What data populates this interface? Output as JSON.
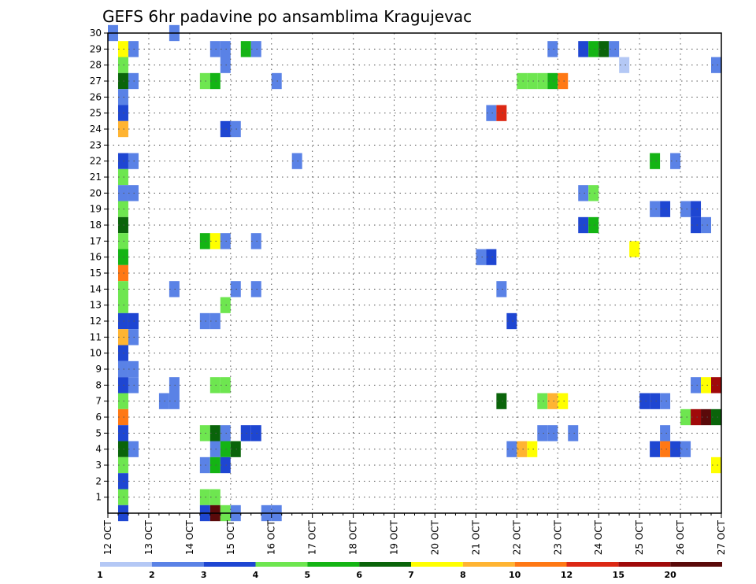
{
  "chart_data": {
    "type": "heatmap",
    "title": "GEFS 6hr padavine po ansamblima Kragujevac",
    "xlabel": "",
    "ylabel": "",
    "x_ticks": [
      "12 OCT",
      "13 OCT",
      "14 OCT",
      "15 OCT",
      "16 OCT",
      "17 OCT",
      "18 OCT",
      "19 OCT",
      "20 OCT",
      "21 OCT",
      "22 OCT",
      "23 OCT",
      "24 OCT",
      "25 OCT",
      "26 OCT",
      "27 OCT"
    ],
    "xlim_days": [
      12,
      27
    ],
    "y_ticks": [
      1,
      2,
      3,
      4,
      5,
      6,
      7,
      8,
      9,
      10,
      11,
      12,
      13,
      14,
      15,
      16,
      17,
      18,
      19,
      20,
      21,
      22,
      23,
      24,
      25,
      26,
      27,
      28,
      29,
      30
    ],
    "ylim": [
      0,
      30
    ],
    "grid": true,
    "colorbar": {
      "labels": [
        "1",
        "2",
        "3",
        "4",
        "5",
        "6",
        "7",
        "8",
        "10",
        "12",
        "15",
        "20"
      ],
      "colors": [
        "#b4c8f5",
        "#5a82e6",
        "#1e46d2",
        "#6ee650",
        "#14b414",
        "#0a640a",
        "#ffff00",
        "#ffb432",
        "#ff7814",
        "#dc2814",
        "#a00a0a",
        "#5a0a0a"
      ]
    },
    "cells": [
      [
        12,
        30,
        1
      ],
      [
        12.25,
        29,
        6
      ],
      [
        12.5,
        29,
        1
      ],
      [
        12.25,
        28,
        3
      ],
      [
        12.25,
        27,
        5
      ],
      [
        12.5,
        27,
        1
      ],
      [
        12.25,
        26,
        1
      ],
      [
        12.25,
        25,
        2
      ],
      [
        12.25,
        24,
        7
      ],
      [
        12.25,
        22,
        2
      ],
      [
        12.5,
        22,
        1
      ],
      [
        12.25,
        21,
        3
      ],
      [
        12.25,
        20,
        1
      ],
      [
        12.5,
        20,
        1
      ],
      [
        12.25,
        19,
        3
      ],
      [
        12.25,
        18,
        5
      ],
      [
        12.25,
        17,
        3
      ],
      [
        12.25,
        16,
        4
      ],
      [
        12.25,
        15,
        8
      ],
      [
        12.25,
        14,
        3
      ],
      [
        12.25,
        13,
        3
      ],
      [
        12.25,
        12,
        2
      ],
      [
        12.5,
        12,
        2
      ],
      [
        12.25,
        11,
        7
      ],
      [
        12.5,
        11,
        1
      ],
      [
        12.25,
        10,
        2
      ],
      [
        12.25,
        9,
        1
      ],
      [
        12.5,
        9,
        1
      ],
      [
        12.25,
        8,
        2
      ],
      [
        12.5,
        8,
        1
      ],
      [
        12.25,
        7,
        3
      ],
      [
        12.25,
        6,
        8
      ],
      [
        12.25,
        5,
        2
      ],
      [
        12.25,
        4,
        5
      ],
      [
        12.5,
        4,
        1
      ],
      [
        12.25,
        3,
        3
      ],
      [
        12.25,
        2,
        2
      ],
      [
        12.25,
        1,
        3
      ],
      [
        12.25,
        0,
        2
      ],
      [
        13.5,
        30,
        1
      ],
      [
        14.5,
        29,
        1
      ],
      [
        14.75,
        29,
        1
      ],
      [
        15.25,
        29,
        4
      ],
      [
        15.5,
        29,
        1
      ],
      [
        14.75,
        28,
        1
      ],
      [
        14.25,
        27,
        3
      ],
      [
        14.5,
        27,
        4
      ],
      [
        16,
        27,
        1
      ],
      [
        14.75,
        24,
        2
      ],
      [
        15,
        24,
        1
      ],
      [
        16.5,
        22,
        1
      ],
      [
        14.25,
        17,
        4
      ],
      [
        14.5,
        17,
        6
      ],
      [
        14.75,
        17,
        1
      ],
      [
        15.5,
        17,
        1
      ],
      [
        13.5,
        14,
        1
      ],
      [
        15,
        14,
        1
      ],
      [
        15.5,
        14,
        1
      ],
      [
        14.75,
        13,
        3
      ],
      [
        14.25,
        12,
        1
      ],
      [
        14.5,
        12,
        1
      ],
      [
        13.5,
        8,
        1
      ],
      [
        14.5,
        8,
        3
      ],
      [
        14.75,
        8,
        3
      ],
      [
        13.25,
        7,
        1
      ],
      [
        13.5,
        7,
        1
      ],
      [
        14.25,
        5,
        3
      ],
      [
        14.5,
        5,
        5
      ],
      [
        14.75,
        5,
        1
      ],
      [
        15.25,
        5,
        2
      ],
      [
        15.5,
        5,
        2
      ],
      [
        14.5,
        4,
        1
      ],
      [
        14.75,
        4,
        4
      ],
      [
        15,
        4,
        5
      ],
      [
        14.25,
        3,
        1
      ],
      [
        14.5,
        3,
        4
      ],
      [
        14.75,
        3,
        2
      ],
      [
        14.25,
        1,
        3
      ],
      [
        14.5,
        1,
        3
      ],
      [
        14.25,
        0,
        2
      ],
      [
        14.5,
        0,
        11
      ],
      [
        14.75,
        0,
        3
      ],
      [
        15,
        0,
        1
      ],
      [
        15.75,
        0,
        1
      ],
      [
        16,
        0,
        1
      ],
      [
        21.25,
        25,
        1
      ],
      [
        21.5,
        25,
        9
      ],
      [
        21,
        16,
        1
      ],
      [
        21.25,
        16,
        2
      ],
      [
        21.5,
        14,
        1
      ],
      [
        21.75,
        12,
        2
      ],
      [
        21.5,
        7,
        5
      ],
      [
        21.75,
        4,
        1
      ],
      [
        22,
        4,
        7
      ],
      [
        22.25,
        4,
        6
      ],
      [
        22.75,
        29,
        1
      ],
      [
        23.5,
        29,
        2
      ],
      [
        23.75,
        29,
        4
      ],
      [
        24,
        29,
        5
      ],
      [
        24.25,
        29,
        1
      ],
      [
        24.5,
        28,
        0
      ],
      [
        26.75,
        28,
        1
      ],
      [
        22,
        27,
        3
      ],
      [
        22.25,
        27,
        3
      ],
      [
        22.5,
        27,
        3
      ],
      [
        22.75,
        27,
        4
      ],
      [
        23,
        27,
        8
      ],
      [
        25.75,
        22,
        1
      ],
      [
        25.25,
        22,
        4
      ],
      [
        23.5,
        20,
        1
      ],
      [
        23.75,
        20,
        3
      ],
      [
        25.25,
        19,
        1
      ],
      [
        25.5,
        19,
        2
      ],
      [
        26,
        19,
        1
      ],
      [
        26.25,
        19,
        2
      ],
      [
        23.5,
        18,
        2
      ],
      [
        23.75,
        18,
        4
      ],
      [
        26.25,
        18,
        2
      ],
      [
        26.5,
        18,
        1
      ],
      [
        24.75,
        16.5,
        6
      ],
      [
        22.5,
        7,
        3
      ],
      [
        22.75,
        7,
        7
      ],
      [
        23,
        7,
        6
      ],
      [
        25,
        7,
        2
      ],
      [
        25.25,
        7,
        2
      ],
      [
        25.5,
        7,
        1
      ],
      [
        26.25,
        8,
        1
      ],
      [
        26.5,
        8,
        6
      ],
      [
        26.75,
        8,
        10
      ],
      [
        26,
        6,
        3
      ],
      [
        26.25,
        6,
        10
      ],
      [
        26.5,
        6,
        11
      ],
      [
        26.75,
        6,
        5
      ],
      [
        22.5,
        5,
        1
      ],
      [
        22.75,
        5,
        1
      ],
      [
        23.25,
        5,
        1
      ],
      [
        25.5,
        5,
        1
      ],
      [
        25.25,
        4,
        2
      ],
      [
        25.5,
        4,
        8
      ],
      [
        25.75,
        4,
        2
      ],
      [
        26,
        4,
        1
      ],
      [
        26.75,
        3,
        6
      ]
    ]
  }
}
